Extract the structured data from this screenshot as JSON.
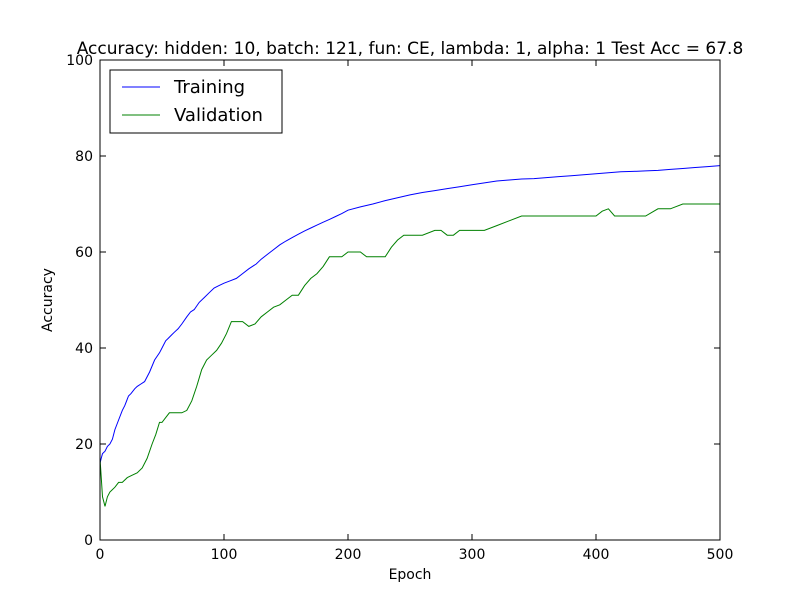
{
  "chart_data": {
    "type": "line",
    "title": "Accuracy: hidden: 10, batch: 121, fun: CE, lambda: 1, alpha: 1  Test Acc = 67.8",
    "xlabel": "Epoch",
    "ylabel": "Accuracy",
    "xlim": [
      0,
      500
    ],
    "ylim": [
      0,
      100
    ],
    "xticks": [
      0,
      100,
      200,
      300,
      400,
      500
    ],
    "yticks": [
      0,
      20,
      40,
      60,
      80,
      100
    ],
    "grid": false,
    "legend_position": "top-left",
    "series": [
      {
        "name": "Training",
        "color": "#0000ff",
        "x": [
          0,
          1,
          2,
          4,
          6,
          8,
          10,
          12,
          15,
          18,
          20,
          23,
          25,
          28,
          30,
          33,
          36,
          40,
          44,
          48,
          50,
          53,
          55,
          58,
          60,
          63,
          66,
          70,
          73,
          76,
          80,
          84,
          88,
          92,
          96,
          100,
          105,
          110,
          115,
          120,
          126,
          130,
          135,
          140,
          145,
          150,
          155,
          160,
          165,
          170,
          175,
          180,
          185,
          190,
          195,
          200,
          210,
          220,
          230,
          240,
          250,
          260,
          270,
          280,
          290,
          300,
          310,
          320,
          330,
          340,
          350,
          360,
          370,
          380,
          390,
          400,
          410,
          420,
          430,
          440,
          450,
          460,
          470,
          480,
          490,
          500
        ],
        "y": [
          16,
          17,
          18,
          18.5,
          19.5,
          20,
          21,
          23,
          25,
          27,
          28,
          30,
          30.5,
          31.5,
          32,
          32.5,
          33,
          35,
          37.5,
          39,
          40,
          41.5,
          42,
          42.8,
          43.3,
          44,
          45,
          46.5,
          47.5,
          48,
          49.5,
          50.5,
          51.5,
          52.5,
          53,
          53.5,
          54,
          54.5,
          55.5,
          56.5,
          57.5,
          58.5,
          59.5,
          60.5,
          61.5,
          62.3,
          63,
          63.7,
          64.4,
          65,
          65.6,
          66.2,
          66.8,
          67.4,
          68,
          68.7,
          69.4,
          70,
          70.7,
          71.3,
          71.9,
          72.4,
          72.8,
          73.2,
          73.6,
          74,
          74.4,
          74.8,
          75,
          75.2,
          75.3,
          75.5,
          75.7,
          75.9,
          76.1,
          76.3,
          76.5,
          76.7,
          76.8,
          76.9,
          77,
          77.2,
          77.4,
          77.6,
          77.8,
          78
        ]
      },
      {
        "name": "Validation",
        "color": "#008000",
        "x": [
          0,
          2,
          4,
          6,
          8,
          10,
          12,
          15,
          18,
          22,
          26,
          30,
          34,
          38,
          42,
          45,
          48,
          50,
          53,
          56,
          60,
          66,
          70,
          74,
          78,
          82,
          86,
          90,
          94,
          98,
          102,
          106,
          110,
          115,
          120,
          125,
          130,
          135,
          140,
          145,
          150,
          155,
          160,
          165,
          170,
          175,
          180,
          185,
          190,
          195,
          200,
          205,
          210,
          215,
          220,
          225,
          230,
          235,
          240,
          245,
          250,
          260,
          270,
          275,
          280,
          285,
          290,
          300,
          310,
          320,
          330,
          340,
          350,
          360,
          380,
          400,
          405,
          410,
          415,
          420,
          440,
          450,
          460,
          470,
          480,
          490,
          500
        ],
        "y": [
          17,
          9,
          7,
          9,
          10,
          10.5,
          11,
          12,
          12,
          13,
          13.5,
          14,
          15,
          17,
          20,
          22,
          24.5,
          24.5,
          25.5,
          26.5,
          26.5,
          26.5,
          27,
          29,
          32,
          35.5,
          37.5,
          38.5,
          39.5,
          41,
          43,
          45.5,
          45.5,
          45.5,
          44.5,
          45,
          46.5,
          47.5,
          48.5,
          49,
          50,
          51,
          51,
          53,
          54.5,
          55.5,
          57,
          59,
          59,
          59,
          60,
          60,
          60,
          59,
          59,
          59,
          59,
          61,
          62.5,
          63.5,
          63.5,
          63.5,
          64.5,
          64.5,
          63.5,
          63.5,
          64.5,
          64.5,
          64.5,
          65.5,
          66.5,
          67.5,
          67.5,
          67.5,
          67.5,
          67.5,
          68.5,
          69,
          67.5,
          67.5,
          67.5,
          69,
          69,
          70,
          70,
          70,
          70
        ]
      }
    ]
  }
}
